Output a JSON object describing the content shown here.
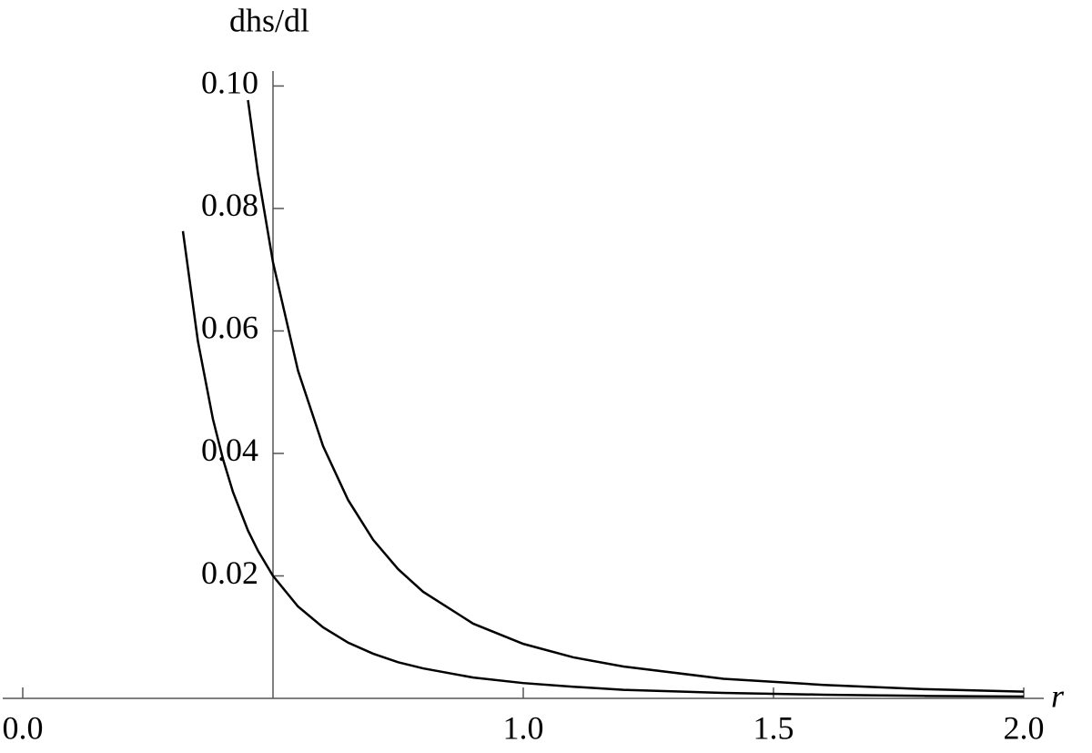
{
  "chart_data": {
    "type": "line",
    "x_label": "r",
    "y_label": "dhs/dl",
    "x": [
      0.32,
      0.35,
      0.38,
      0.4,
      0.42,
      0.45,
      0.47,
      0.5,
      0.55,
      0.6,
      0.65,
      0.7,
      0.75,
      0.8,
      0.9,
      1.0,
      1.1,
      1.2,
      1.4,
      1.6,
      1.8,
      2.0
    ],
    "series": [
      {
        "color": "#000000",
        "values": [
          null,
          null,
          null,
          null,
          null,
          0.0977,
          0.0857,
          0.0712,
          0.0535,
          0.0412,
          0.0324,
          0.0259,
          0.0211,
          0.0174,
          0.0122,
          0.0089,
          0.0067,
          0.0052,
          0.0032,
          0.0022,
          0.0015,
          0.0011
        ]
      },
      {
        "color": "#000000",
        "values": [
          0.0763,
          0.0583,
          0.0456,
          0.0391,
          0.0337,
          0.0274,
          0.0241,
          0.02,
          0.015,
          0.0116,
          0.0091,
          0.0073,
          0.0059,
          0.0049,
          0.0034,
          0.0025,
          0.0019,
          0.0014,
          0.0009,
          0.0006,
          0.0004,
          0.0003
        ]
      }
    ],
    "xlim": [
      -0.04,
      2.04
    ],
    "ylim": [
      0,
      0.102
    ],
    "x_axis_at": 0.5,
    "xticks": [
      {
        "value": 0,
        "label": "0.0"
      },
      {
        "value": 1,
        "label": "1.0"
      },
      1.5,
      {
        "value": 2,
        "label": "2.0"
      }
    ],
    "yticks": [
      0.02,
      0.04,
      0.06,
      0.08,
      {
        "value": 0.1,
        "label": "0.10"
      }
    ]
  }
}
